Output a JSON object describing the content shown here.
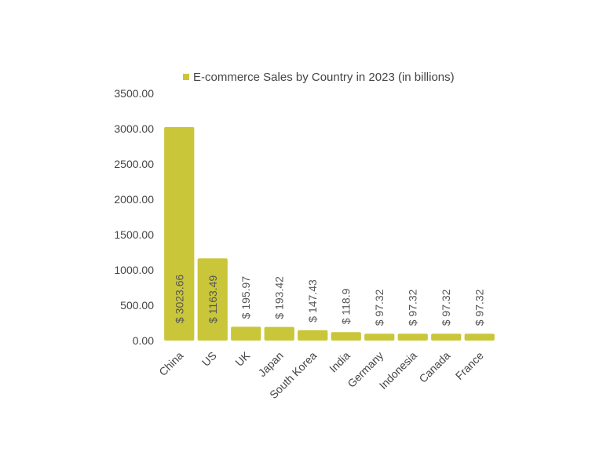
{
  "chart_data": {
    "type": "bar",
    "categories": [
      "China",
      "US",
      "UK",
      "Japan",
      "South Korea",
      "India",
      "Germany",
      "Indonesia",
      "Canada",
      "France"
    ],
    "series": [
      {
        "name": "E-commerce Sales by Country in 2023 (in billions)",
        "values": [
          3023.66,
          1163.49,
          195.97,
          193.42,
          147.43,
          118.9,
          97.32,
          97.32,
          97.32,
          97.32
        ],
        "labels": [
          "$ 3023.66",
          "$ 1163.49",
          "$ 195.97",
          "$ 193.42",
          "$ 147.43",
          "$ 118.9",
          "$ 97.32",
          "$ 97.32",
          "$ 97.32",
          "$ 97.32"
        ]
      }
    ],
    "yticks": [
      "0.00",
      "500.00",
      "1000.00",
      "1500.00",
      "2000.00",
      "2500.00",
      "3000.00",
      "3500.00"
    ],
    "ylim": [
      0,
      3500
    ],
    "grid": false,
    "legend": "top",
    "colors": {
      "bar": "#c9c63a"
    }
  }
}
